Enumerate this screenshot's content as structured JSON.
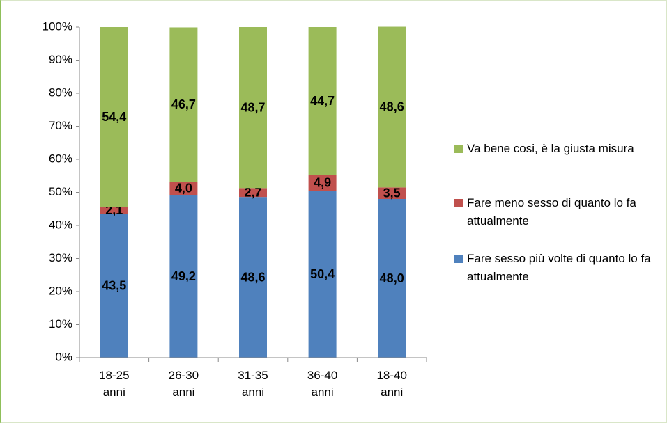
{
  "chart_data": {
    "type": "stacked_bar",
    "categories": [
      "18-25 anni",
      "26-30 anni",
      "31-35 anni",
      "36-40 anni",
      "18-40 anni"
    ],
    "series": [
      {
        "name": "Fare sesso più volte di quanto lo fa attualmente",
        "color": "#4f81bd",
        "values": [
          43.5,
          49.2,
          48.6,
          50.4,
          48.0
        ],
        "value_labels": [
          "43,5",
          "49,2",
          "48,6",
          "50,4",
          "48,0"
        ]
      },
      {
        "name": "Fare meno sesso di quanto lo fa attualmente",
        "color": "#c0504d",
        "values": [
          2.1,
          4.0,
          2.7,
          4.9,
          3.5
        ],
        "value_labels": [
          "2,1",
          "4,0",
          "2,7",
          "4,9",
          "3,5"
        ]
      },
      {
        "name": "Va bene cosi, è la giusta misura",
        "color": "#9bbb59",
        "values": [
          54.4,
          46.7,
          48.7,
          44.7,
          48.6
        ],
        "value_labels": [
          "54,4",
          "46,7",
          "48,7",
          "44,7",
          "48,6"
        ]
      }
    ],
    "ylim": [
      0,
      100
    ],
    "yticks": [
      {
        "value": 0,
        "label": "0%"
      },
      {
        "value": 10,
        "label": "10%"
      },
      {
        "value": 20,
        "label": "20%"
      },
      {
        "value": 30,
        "label": "30%"
      },
      {
        "value": 40,
        "label": "40%"
      },
      {
        "value": 50,
        "label": "50%"
      },
      {
        "value": 60,
        "label": "60%"
      },
      {
        "value": 70,
        "label": "70%"
      },
      {
        "value": 80,
        "label": "80%"
      },
      {
        "value": 90,
        "label": "90%"
      },
      {
        "value": 100,
        "label": "100%"
      }
    ],
    "grid": false,
    "legend": "right"
  }
}
